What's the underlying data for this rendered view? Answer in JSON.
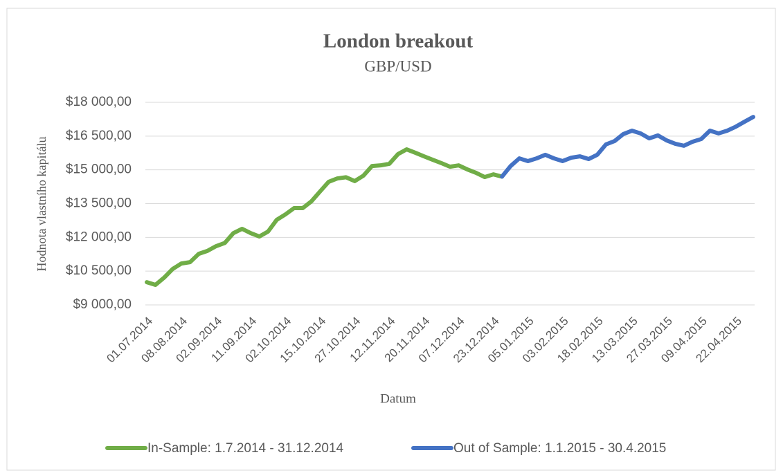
{
  "chart_data": {
    "type": "line",
    "title": "London breakout",
    "subtitle": "GBP/USD",
    "x_label": "Datum",
    "y_label": "Hodnota vlastního kapitálu",
    "categories": [
      "01.07.2014",
      null,
      null,
      null,
      "08.08.2014",
      null,
      null,
      null,
      "02.09.2014",
      null,
      null,
      null,
      "11.09.2014",
      null,
      null,
      null,
      "02.10.2014",
      null,
      null,
      null,
      "15.10.2014",
      null,
      null,
      null,
      "27.10.2014",
      null,
      null,
      null,
      "12.11.2014",
      null,
      null,
      null,
      "20.11.2014",
      null,
      null,
      null,
      "07.12.2014",
      null,
      null,
      null,
      "23.12.2014",
      null,
      null,
      null,
      "05.01.2015",
      null,
      null,
      null,
      "03.02.2015",
      null,
      null,
      null,
      "18.02.2015",
      null,
      null,
      null,
      "13.03.2015",
      null,
      null,
      null,
      "27.03.2015",
      null,
      null,
      null,
      "09.04.2015",
      null,
      null,
      null,
      "22.04.2015",
      null,
      null
    ],
    "series": [
      {
        "name": "In-Sample: 1.7.2014 - 31.12.2014",
        "color": "#70ad47",
        "values": [
          10010,
          9890,
          10210,
          10600,
          10840,
          10900,
          11270,
          11400,
          11610,
          11750,
          12190,
          12380,
          12190,
          12040,
          12260,
          12780,
          13020,
          13300,
          13300,
          13600,
          14040,
          14470,
          14620,
          14670,
          14500,
          14740,
          15170,
          15200,
          15270,
          15700,
          15910,
          15760,
          15600,
          15450,
          15300,
          15140,
          15200,
          15020,
          14870,
          14680,
          14800,
          14700,
          null,
          null,
          null,
          null,
          null,
          null,
          null,
          null,
          null,
          null,
          null,
          null,
          null,
          null,
          null,
          null,
          null,
          null,
          null,
          null,
          null,
          null,
          null,
          null,
          null,
          null,
          null,
          null,
          null
        ]
      },
      {
        "name": "Out of Sample: 1.1.2015 - 30.4.2015",
        "color": "#4472c4",
        "values": [
          null,
          null,
          null,
          null,
          null,
          null,
          null,
          null,
          null,
          null,
          null,
          null,
          null,
          null,
          null,
          null,
          null,
          null,
          null,
          null,
          null,
          null,
          null,
          null,
          null,
          null,
          null,
          null,
          null,
          null,
          null,
          null,
          null,
          null,
          null,
          null,
          null,
          null,
          null,
          null,
          null,
          14700,
          15170,
          15510,
          15390,
          15510,
          15670,
          15510,
          15390,
          15540,
          15600,
          15480,
          15670,
          16130,
          16280,
          16590,
          16740,
          16620,
          16400,
          16530,
          16310,
          16160,
          16070,
          16250,
          16370,
          16740,
          16620,
          16740,
          16920,
          17140,
          17350
        ]
      }
    ],
    "ylim": [
      9000,
      18000
    ],
    "yticks": [
      {
        "value": 9000,
        "label": "$9 000,00"
      },
      {
        "value": 10500,
        "label": "$10 500,00"
      },
      {
        "value": 12000,
        "label": "$12 000,00"
      },
      {
        "value": 13500,
        "label": "$13 500,00"
      },
      {
        "value": 15000,
        "label": "$15 000,00"
      },
      {
        "value": 16500,
        "label": "$16 500,00"
      },
      {
        "value": 18000,
        "label": "$18 000,00"
      }
    ],
    "grid": true,
    "legend": "bottom"
  }
}
